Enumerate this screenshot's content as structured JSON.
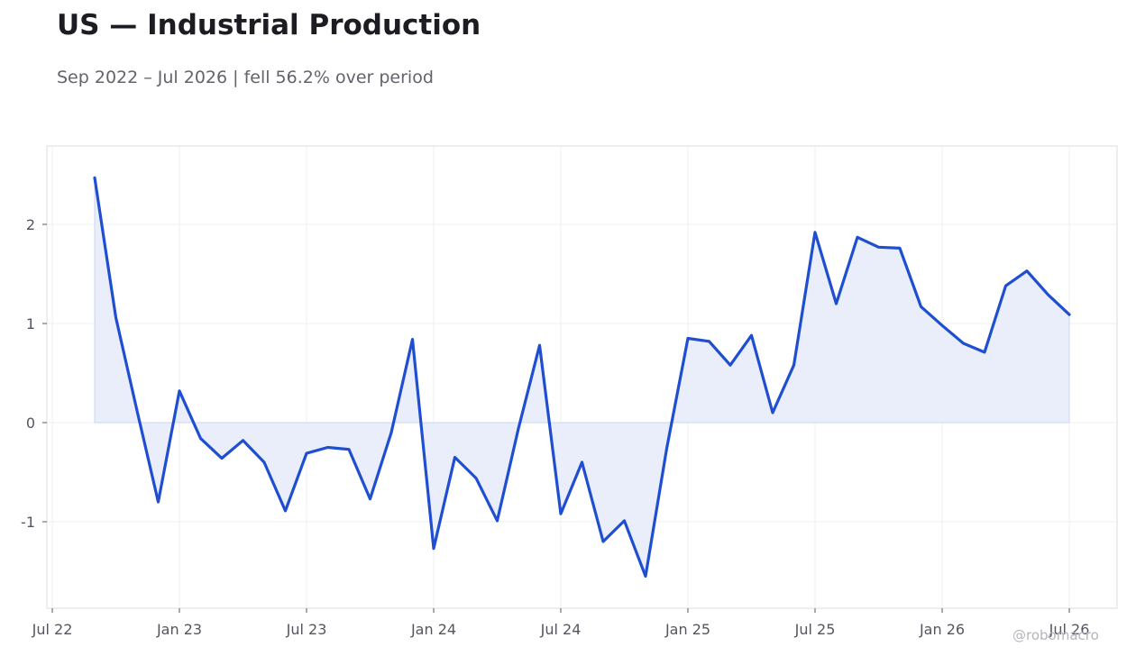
{
  "title": "US — Industrial Production",
  "subtitle": "Sep 2022 – Jul 2026 | fell 56.2% over period",
  "watermark": "@robomacro",
  "colors": {
    "line": "#1f4fd0",
    "fill": "#e9eefa",
    "grid": "#efeff2",
    "frame": "#dedee3"
  },
  "chart_data": {
    "type": "area",
    "title": "US — Industrial Production",
    "subtitle": "Sep 2022 – Jul 2026 | fell 56.2% over period",
    "xlabel": "",
    "ylabel": "",
    "grid": true,
    "xlim": [
      "2022-07",
      "2026-09"
    ],
    "ylim": [
      -1.88,
      2.8
    ],
    "x_ticks": [
      {
        "date": "2022-07",
        "label": "Jul 22"
      },
      {
        "date": "2023-01",
        "label": "Jan 23"
      },
      {
        "date": "2023-07",
        "label": "Jul 23"
      },
      {
        "date": "2024-01",
        "label": "Jan 24"
      },
      {
        "date": "2024-07",
        "label": "Jul 24"
      },
      {
        "date": "2025-01",
        "label": "Jan 25"
      },
      {
        "date": "2025-07",
        "label": "Jul 25"
      },
      {
        "date": "2026-01",
        "label": "Jan 26"
      },
      {
        "date": "2026-07",
        "label": "Jul 26"
      }
    ],
    "y_ticks": [
      {
        "value": -1,
        "label": "-1"
      },
      {
        "value": 0,
        "label": "0"
      },
      {
        "value": 1,
        "label": "1"
      },
      {
        "value": 2,
        "label": "2"
      }
    ],
    "series": [
      {
        "x": [
          "2022-09",
          "2022-10",
          "2022-11",
          "2022-12",
          "2023-01",
          "2023-02",
          "2023-03",
          "2023-04",
          "2023-05",
          "2023-06",
          "2023-07",
          "2023-08",
          "2023-09",
          "2023-10",
          "2023-11",
          "2023-12",
          "2024-01",
          "2024-02",
          "2024-03",
          "2024-04",
          "2024-05",
          "2024-06",
          "2024-07",
          "2024-08",
          "2024-09",
          "2024-10",
          "2024-11",
          "2024-12",
          "2025-01",
          "2025-02",
          "2025-03",
          "2025-04",
          "2025-05",
          "2025-06",
          "2025-07",
          "2025-08",
          "2025-09",
          "2025-10",
          "2025-11",
          "2025-12",
          "2026-01",
          "2026-02",
          "2026-03",
          "2026-04",
          "2026-05",
          "2026-06",
          "2026-07"
        ],
        "y": [
          2.47,
          1.06,
          0.12,
          -0.8,
          0.32,
          -0.16,
          -0.36,
          -0.18,
          -0.4,
          -0.89,
          -0.31,
          -0.25,
          -0.27,
          -0.77,
          -0.1,
          0.84,
          -1.27,
          -0.35,
          -0.56,
          -0.99,
          -0.06,
          0.78,
          -0.92,
          -0.4,
          -1.2,
          -0.99,
          -1.55,
          -0.26,
          0.85,
          0.82,
          0.58,
          0.88,
          0.1,
          0.58,
          1.92,
          1.2,
          1.87,
          1.77,
          1.76,
          1.17,
          0.98,
          0.8,
          0.71,
          1.38,
          1.53,
          1.29,
          1.09
        ]
      }
    ]
  }
}
